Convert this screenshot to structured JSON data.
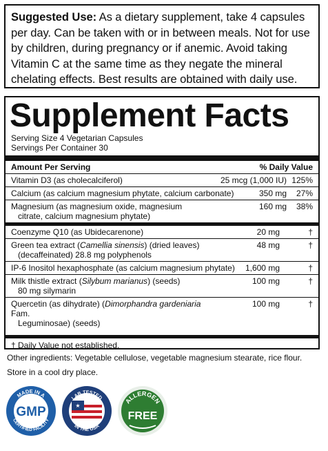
{
  "suggested_use": {
    "label": "Suggested Use:",
    "text": " As a dietary supplement, take 4 capsules per day. Can be taken with or in between meals. Not for use by children, during pregnancy or if anemic. Avoid taking Vitamin C at the same time as they negate the mineral chelating effects. Best results are obtained with daily use."
  },
  "facts": {
    "title": "Supplement Facts",
    "serving_size": "Serving Size 4 Vegetarian Capsules",
    "servings_per_container": "Servings Per Container 30",
    "header_left": "Amount Per Serving",
    "header_right": "% Daily Value",
    "group1": [
      {
        "name": "Vitamin D3 (as cholecalciferol)",
        "amount": "25 mcg (1,000 IU)",
        "dv": "125%"
      },
      {
        "name": "Calcium (as calcium magnesium phytate, calcium carbonate)",
        "amount": "350 mg",
        "dv": "27%"
      },
      {
        "name": "Magnesium (as magnesium oxide, magnesium",
        "name2": "citrate, calcium magnesium phytate)",
        "amount": "160 mg",
        "dv": "38%"
      }
    ],
    "group2": [
      {
        "name": "Coenzyme Q10 (as Ubidecarenone)",
        "amount": "20 mg",
        "dv": "†"
      },
      {
        "name_a": "Green tea extract (",
        "name_i": "Camellia sinensis",
        "name_b": ") (dried leaves)",
        "name2": "(decaffeinated) 28.8 mg polyphenols",
        "amount": "48 mg",
        "dv": "†"
      },
      {
        "name": "IP-6 Inositol hexaphosphate (as calcium magnesium phytate)",
        "amount": "1,600 mg",
        "dv": "†"
      },
      {
        "name_a": "Milk thistle extract (",
        "name_i": "Silybum marianus",
        "name_b": ") (seeds)",
        "name2": "80 mg silymarin",
        "amount": "100 mg",
        "dv": "†"
      },
      {
        "name_a": "Quercetin (as dihydrate) (",
        "name_i": "Dimorphandra gardeniaria",
        "name_b": " Fam.",
        "name2": "Leguminosae) (seeds)",
        "amount": "100 mg",
        "dv": "†"
      }
    ],
    "footnote": "† Daily Value not established."
  },
  "other_ingredients": "Other ingredients: Vegetable cellulose, vegetable magnesium stearate, rice flour.",
  "storage": "Store in a cool dry place.",
  "badges": {
    "gmp": {
      "top": "MADE IN A",
      "center": "GMP",
      "bottom": "CERTIFIED FACILITY",
      "color": "#1f5fa8"
    },
    "lab": {
      "top": "LAB TESTED",
      "bottom": "IN THE USA",
      "color": "#1f3f7a",
      "stripe_color": "#c8202b"
    },
    "allergen": {
      "top": "ALLERGEN",
      "center": "FREE",
      "color": "#2e7d32"
    }
  }
}
